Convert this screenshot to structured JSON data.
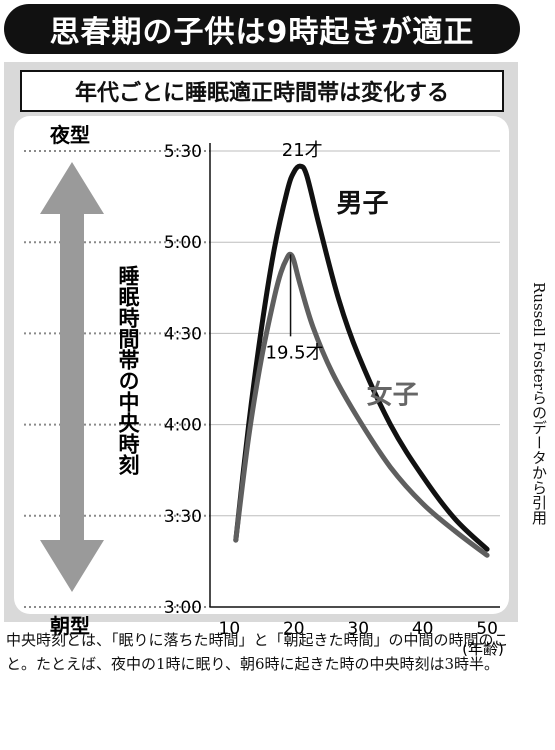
{
  "header": {
    "title": "思春期の子供は9時起きが適正"
  },
  "subheader": {
    "title": "年代ごとに睡眠適正時間帯は変化する"
  },
  "labels": {
    "night_type": "夜型",
    "morning_type": "朝型"
  },
  "arrow_color": "#9a9a9a",
  "source_credit": "Russell Fosterらのデータから引用",
  "footnote": "中央時刻とは、「眠りに落ちた時間」と「朝起きた時間」の中間の時間のこと。たとえば、夜中の1時に眠り、朝6時に起きた時の中央時刻は3時半。",
  "chart_data": {
    "type": "line",
    "ylabel": "睡眠時間帯の中央時刻",
    "xlabel": "(年齢)",
    "xlim": [
      7,
      52
    ],
    "x_ticks": [
      10,
      20,
      30,
      40,
      50
    ],
    "x_tick_labels": [
      "10",
      "20",
      "30",
      "40",
      "50"
    ],
    "ylim": [
      180,
      330
    ],
    "y_ticks": [
      180,
      210,
      240,
      270,
      300,
      330
    ],
    "y_tick_labels": [
      "3:00",
      "3:30",
      "4:00",
      "4:30",
      "5:00",
      "5:30"
    ],
    "y_unit": "minutes after midnight",
    "grid": true,
    "series": [
      {
        "name": "男子",
        "color": "#111111",
        "x": [
          11,
          13,
          15,
          17,
          19,
          20,
          21,
          22,
          24,
          27,
          30,
          35,
          40,
          45,
          50
        ],
        "y": [
          202,
          240,
          272,
          298,
          317,
          323,
          325,
          322,
          305,
          281,
          263,
          240,
          223,
          209,
          199
        ]
      },
      {
        "name": "女子",
        "color": "#5f5f5f",
        "x": [
          11,
          13,
          15,
          17,
          18,
          19,
          19.5,
          20,
          21,
          23,
          26,
          30,
          35,
          40,
          45,
          50
        ],
        "y": [
          202,
          236,
          262,
          282,
          290,
          295,
          296,
          294,
          286,
          272,
          257,
          242,
          226,
          214,
          205,
          197
        ]
      }
    ],
    "annotations": [
      {
        "text": "21才",
        "x": 21,
        "y": 325
      },
      {
        "text": "19.5才",
        "x": 19.5,
        "y": 296
      }
    ]
  }
}
